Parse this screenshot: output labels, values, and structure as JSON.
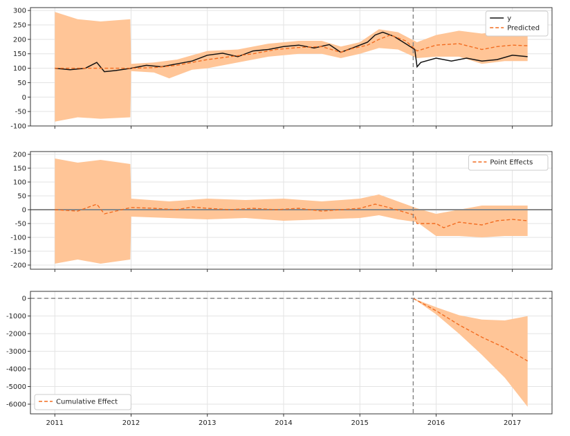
{
  "chart_data": [
    {
      "type": "line",
      "panel": "original",
      "ylim": [
        -100,
        310
      ],
      "yticks": [
        -100,
        -50,
        0,
        50,
        100,
        150,
        200,
        250,
        300
      ],
      "grid": true,
      "legend_position": "top-right",
      "series": [
        {
          "name": "y",
          "style": "solid",
          "color": "#111111",
          "points": [
            [
              2011.0,
              100
            ],
            [
              2011.2,
              95
            ],
            [
              2011.4,
              100
            ],
            [
              2011.55,
              120
            ],
            [
              2011.65,
              88
            ],
            [
              2011.8,
              92
            ],
            [
              2012.0,
              100
            ],
            [
              2012.2,
              110
            ],
            [
              2012.4,
              105
            ],
            [
              2012.6,
              115
            ],
            [
              2012.8,
              125
            ],
            [
              2013.0,
              145
            ],
            [
              2013.2,
              152
            ],
            [
              2013.4,
              140
            ],
            [
              2013.6,
              160
            ],
            [
              2013.8,
              165
            ],
            [
              2014.0,
              175
            ],
            [
              2014.2,
              180
            ],
            [
              2014.4,
              170
            ],
            [
              2014.6,
              182
            ],
            [
              2014.75,
              155
            ],
            [
              2014.9,
              170
            ],
            [
              2015.1,
              190
            ],
            [
              2015.2,
              215
            ],
            [
              2015.3,
              225
            ],
            [
              2015.45,
              210
            ],
            [
              2015.6,
              185
            ],
            [
              2015.72,
              165
            ],
            [
              2015.75,
              105
            ],
            [
              2015.8,
              120
            ],
            [
              2016.0,
              135
            ],
            [
              2016.2,
              125
            ],
            [
              2016.4,
              135
            ],
            [
              2016.6,
              125
            ],
            [
              2016.8,
              130
            ],
            [
              2017.0,
              145
            ],
            [
              2017.2,
              140
            ]
          ]
        },
        {
          "name": "Predicted",
          "style": "dashed",
          "color": "#f26b1f",
          "points": [
            [
              2011.0,
              100
            ],
            [
              2011.5,
              100
            ],
            [
              2012.0,
              100
            ],
            [
              2012.3,
              102
            ],
            [
              2012.6,
              110
            ],
            [
              2012.8,
              120
            ],
            [
              2013.0,
              130
            ],
            [
              2013.3,
              140
            ],
            [
              2013.6,
              150
            ],
            [
              2013.9,
              165
            ],
            [
              2014.2,
              172
            ],
            [
              2014.5,
              175
            ],
            [
              2014.75,
              155
            ],
            [
              2014.9,
              168
            ],
            [
              2015.1,
              180
            ],
            [
              2015.25,
              200
            ],
            [
              2015.4,
              215
            ],
            [
              2015.6,
              195
            ],
            [
              2015.75,
              160
            ],
            [
              2016.0,
              180
            ],
            [
              2016.3,
              185
            ],
            [
              2016.6,
              165
            ],
            [
              2016.8,
              175
            ],
            [
              2017.0,
              180
            ],
            [
              2017.2,
              178
            ]
          ]
        }
      ],
      "band": {
        "upper": [
          [
            2011.0,
            295
          ],
          [
            2011.3,
            270
          ],
          [
            2011.6,
            262
          ],
          [
            2011.99,
            270
          ],
          [
            2012.0,
            115
          ],
          [
            2012.3,
            120
          ],
          [
            2012.6,
            130
          ],
          [
            2013.0,
            160
          ],
          [
            2013.4,
            165
          ],
          [
            2013.8,
            185
          ],
          [
            2014.2,
            195
          ],
          [
            2014.5,
            195
          ],
          [
            2014.75,
            175
          ],
          [
            2015.0,
            190
          ],
          [
            2015.25,
            235
          ],
          [
            2015.5,
            225
          ],
          [
            2015.75,
            190
          ],
          [
            2016.0,
            215
          ],
          [
            2016.3,
            230
          ],
          [
            2016.6,
            220
          ],
          [
            2016.9,
            230
          ],
          [
            2017.2,
            230
          ]
        ],
        "lower": [
          [
            2011.0,
            -85
          ],
          [
            2011.3,
            -70
          ],
          [
            2011.6,
            -75
          ],
          [
            2011.99,
            -70
          ],
          [
            2012.0,
            90
          ],
          [
            2012.3,
            85
          ],
          [
            2012.5,
            65
          ],
          [
            2012.8,
            95
          ],
          [
            2013.0,
            100
          ],
          [
            2013.4,
            120
          ],
          [
            2013.8,
            140
          ],
          [
            2014.2,
            150
          ],
          [
            2014.5,
            150
          ],
          [
            2014.75,
            135
          ],
          [
            2015.0,
            150
          ],
          [
            2015.25,
            170
          ],
          [
            2015.5,
            165
          ],
          [
            2015.75,
            135
          ],
          [
            2016.0,
            140
          ],
          [
            2016.3,
            140
          ],
          [
            2016.6,
            115
          ],
          [
            2016.9,
            125
          ],
          [
            2017.2,
            125
          ]
        ]
      }
    },
    {
      "type": "line",
      "panel": "pointwise",
      "ylim": [
        -215,
        210
      ],
      "yticks": [
        -200,
        -150,
        -100,
        -50,
        0,
        50,
        100,
        150,
        200
      ],
      "grid": true,
      "legend_position": "top-right",
      "series": [
        {
          "name": "Point Effects",
          "style": "dashed",
          "color": "#f26b1f",
          "points": [
            [
              2011.0,
              0
            ],
            [
              2011.3,
              -5
            ],
            [
              2011.55,
              20
            ],
            [
              2011.65,
              -15
            ],
            [
              2011.8,
              -5
            ],
            [
              2012.0,
              8
            ],
            [
              2012.3,
              5
            ],
            [
              2012.6,
              0
            ],
            [
              2012.8,
              10
            ],
            [
              2013.0,
              5
            ],
            [
              2013.3,
              0
            ],
            [
              2013.6,
              5
            ],
            [
              2013.9,
              0
            ],
            [
              2014.2,
              5
            ],
            [
              2014.5,
              -5
            ],
            [
              2014.75,
              0
            ],
            [
              2015.0,
              5
            ],
            [
              2015.2,
              20
            ],
            [
              2015.35,
              10
            ],
            [
              2015.6,
              -10
            ],
            [
              2015.72,
              -20
            ],
            [
              2015.75,
              -50
            ],
            [
              2016.0,
              -50
            ],
            [
              2016.1,
              -65
            ],
            [
              2016.3,
              -45
            ],
            [
              2016.6,
              -55
            ],
            [
              2016.8,
              -40
            ],
            [
              2017.0,
              -35
            ],
            [
              2017.2,
              -40
            ]
          ]
        }
      ],
      "band": {
        "upper": [
          [
            2011.0,
            185
          ],
          [
            2011.3,
            170
          ],
          [
            2011.6,
            180
          ],
          [
            2011.99,
            165
          ],
          [
            2012.0,
            40
          ],
          [
            2012.5,
            30
          ],
          [
            2013.0,
            40
          ],
          [
            2013.5,
            35
          ],
          [
            2014.0,
            40
          ],
          [
            2014.5,
            30
          ],
          [
            2015.0,
            40
          ],
          [
            2015.25,
            55
          ],
          [
            2015.5,
            30
          ],
          [
            2015.75,
            5
          ],
          [
            2016.0,
            -15
          ],
          [
            2016.3,
            0
          ],
          [
            2016.6,
            15
          ],
          [
            2016.9,
            15
          ],
          [
            2017.2,
            15
          ]
        ],
        "lower": [
          [
            2011.0,
            -195
          ],
          [
            2011.3,
            -180
          ],
          [
            2011.6,
            -195
          ],
          [
            2011.99,
            -180
          ],
          [
            2012.0,
            -25
          ],
          [
            2012.5,
            -30
          ],
          [
            2013.0,
            -35
          ],
          [
            2013.5,
            -30
          ],
          [
            2014.0,
            -40
          ],
          [
            2014.5,
            -35
          ],
          [
            2015.0,
            -30
          ],
          [
            2015.25,
            -20
          ],
          [
            2015.5,
            -35
          ],
          [
            2015.75,
            -45
          ],
          [
            2016.0,
            -95
          ],
          [
            2016.3,
            -95
          ],
          [
            2016.6,
            -100
          ],
          [
            2016.9,
            -95
          ],
          [
            2017.2,
            -95
          ]
        ]
      }
    },
    {
      "type": "line",
      "panel": "cumulative",
      "ylim": [
        -6550,
        400
      ],
      "yticks": [
        -6000,
        -5000,
        -4000,
        -3000,
        -2000,
        -1000,
        0
      ],
      "xlim": [
        2010.68,
        2017.52
      ],
      "xticks": [
        "2011",
        "2012",
        "2013",
        "2014",
        "2015",
        "2016",
        "2017"
      ],
      "grid": true,
      "legend_position": "bottom-left",
      "series": [
        {
          "name": "Cumulative Effect",
          "style": "dashed",
          "color": "#f26b1f",
          "points": [
            [
              2015.7,
              0
            ],
            [
              2016.0,
              -700
            ],
            [
              2016.3,
              -1500
            ],
            [
              2016.6,
              -2200
            ],
            [
              2016.9,
              -2800
            ],
            [
              2017.2,
              -3550
            ]
          ]
        }
      ],
      "band": {
        "upper": [
          [
            2015.7,
            0
          ],
          [
            2016.0,
            -500
          ],
          [
            2016.3,
            -950
          ],
          [
            2016.6,
            -1200
          ],
          [
            2016.9,
            -1250
          ],
          [
            2017.2,
            -1000
          ]
        ],
        "lower": [
          [
            2015.7,
            0
          ],
          [
            2016.0,
            -900
          ],
          [
            2016.3,
            -2000
          ],
          [
            2016.6,
            -3200
          ],
          [
            2016.9,
            -4500
          ],
          [
            2017.2,
            -6150
          ]
        ]
      }
    }
  ],
  "xticks": [
    "2011",
    "2012",
    "2013",
    "2014",
    "2015",
    "2016",
    "2017"
  ],
  "intervention_x": 2015.7,
  "xlim": [
    2010.68,
    2017.52
  ],
  "colors": {
    "band": "#ffc597",
    "predicted": "#f26b1f",
    "actual": "#111111",
    "reference": "#888888"
  }
}
